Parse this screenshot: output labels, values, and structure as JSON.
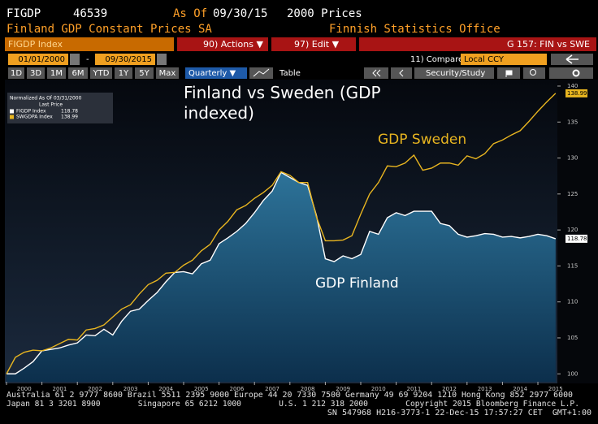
{
  "header": {
    "ticker": "FIGDP",
    "number": "46539",
    "as_of_label": "As Of",
    "as_of_date": "09/30/15",
    "prices": "2000 Prices",
    "description": "Finland GDP Constant Prices SA",
    "source": "Finnish Statistics Office"
  },
  "toolbar": {
    "security": "FIGDP Index",
    "actions": "90) Actions ▼",
    "edit": "97) Edit ▼",
    "page": "G 157: FIN vs SWE",
    "start_date": "01/01/2000",
    "dash": "-",
    "end_date": "09/30/2015",
    "compare_label": "11) Compare",
    "compare_value": "Local CCY",
    "periods": [
      "1D",
      "3D",
      "1M",
      "6M",
      "YTD",
      "1Y",
      "5Y",
      "Max"
    ],
    "frequency": "Quarterly ▼",
    "table": "Table",
    "security_study": "Security/Study"
  },
  "chart_data": {
    "type": "line",
    "title": "Finland vs Sweden (GDP indexed)",
    "legend_title": "Normalized As Of 03/31/2000",
    "legend_subtitle": "Last Price",
    "annotations": [
      "GDP Sweden",
      "GDP Finland"
    ],
    "x": [
      2000,
      2000.25,
      2000.5,
      2000.75,
      2001,
      2001.25,
      2001.5,
      2001.75,
      2002,
      2002.25,
      2002.5,
      2002.75,
      2003,
      2003.25,
      2003.5,
      2003.75,
      2004,
      2004.25,
      2004.5,
      2004.75,
      2005,
      2005.25,
      2005.5,
      2005.75,
      2006,
      2006.25,
      2006.5,
      2006.75,
      2007,
      2007.25,
      2007.5,
      2007.75,
      2008,
      2008.25,
      2008.5,
      2008.75,
      2009,
      2009.25,
      2009.5,
      2009.75,
      2010,
      2010.25,
      2010.5,
      2010.75,
      2011,
      2011.25,
      2011.5,
      2011.75,
      2012,
      2012.25,
      2012.5,
      2012.75,
      2013,
      2013.25,
      2013.5,
      2013.75,
      2014,
      2014.25,
      2014.5,
      2014.75,
      2015,
      2015.25,
      2015.5
    ],
    "xlim": [
      2000,
      2015.55
    ],
    "xticks": [
      2000,
      2001,
      2002,
      2003,
      2004,
      2005,
      2006,
      2007,
      2008,
      2009,
      2010,
      2011,
      2012,
      2013,
      2014,
      2015
    ],
    "ylim": [
      98.9,
      140.9
    ],
    "yticks": [
      100,
      105,
      110,
      115,
      120,
      125,
      130,
      135,
      140
    ],
    "grid": false,
    "series": [
      {
        "name": "FIGDP Index",
        "color": "#ffffff",
        "values": [
          100,
          100,
          100.8,
          101.7,
          103.2,
          103.4,
          103.6,
          104.0,
          104.3,
          105.4,
          105.3,
          106.2,
          105.4,
          107.3,
          108.7,
          109.0,
          110.2,
          111.3,
          112.8,
          114.1,
          114.2,
          113.9,
          115.3,
          115.8,
          118.1,
          118.9,
          119.8,
          120.9,
          122.4,
          124.1,
          125.4,
          128.0,
          127.3,
          126.6,
          126.2,
          122.0,
          116.0,
          115.6,
          116.4,
          116.0,
          116.6,
          119.8,
          119.4,
          121.7,
          122.4,
          122.0,
          122.6,
          122.6,
          122.6,
          120.9,
          120.6,
          119.4,
          119.0,
          119.2,
          119.5,
          119.4,
          119.0,
          119.1,
          118.9,
          119.1,
          119.4,
          119.2,
          118.78
        ]
      },
      {
        "name": "SWGDPA Index",
        "color": "#e8b520",
        "values": [
          100,
          102.3,
          103.0,
          103.3,
          103.2,
          103.6,
          104.2,
          104.8,
          104.7,
          106.1,
          106.3,
          106.8,
          107.9,
          109.0,
          109.6,
          111.1,
          112.4,
          113.0,
          114.0,
          114.1,
          115.1,
          115.8,
          117.1,
          118.0,
          120.0,
          121.2,
          122.8,
          123.4,
          124.4,
          125.2,
          126.2,
          128.1,
          127.6,
          126.6,
          126.6,
          121.8,
          118.5,
          118.5,
          118.6,
          119.2,
          122.2,
          125.0,
          126.6,
          128.9,
          128.8,
          129.3,
          130.4,
          128.3,
          128.6,
          129.3,
          129.3,
          129.0,
          130.3,
          129.9,
          130.6,
          132.0,
          132.5,
          133.2,
          133.8,
          135.1,
          136.5,
          137.8,
          138.99
        ]
      }
    ]
  },
  "footer": {
    "lines": [
      "Australia 61 2 9777 8600 Brazil 5511 2395 9000 Europe 44 20 7330 7500 Germany 49 69 9204 1210 Hong Kong 852 2977 6000",
      "Japan 81 3 3201 8900        Singapore 65 6212 1000        U.S. 1 212 318 2000        Copyright 2015 Bloomberg Finance L.P.",
      "SN 547968 H216-3773-1 22-Dec-15 17:57:27 CET  GMT+1:00"
    ]
  }
}
